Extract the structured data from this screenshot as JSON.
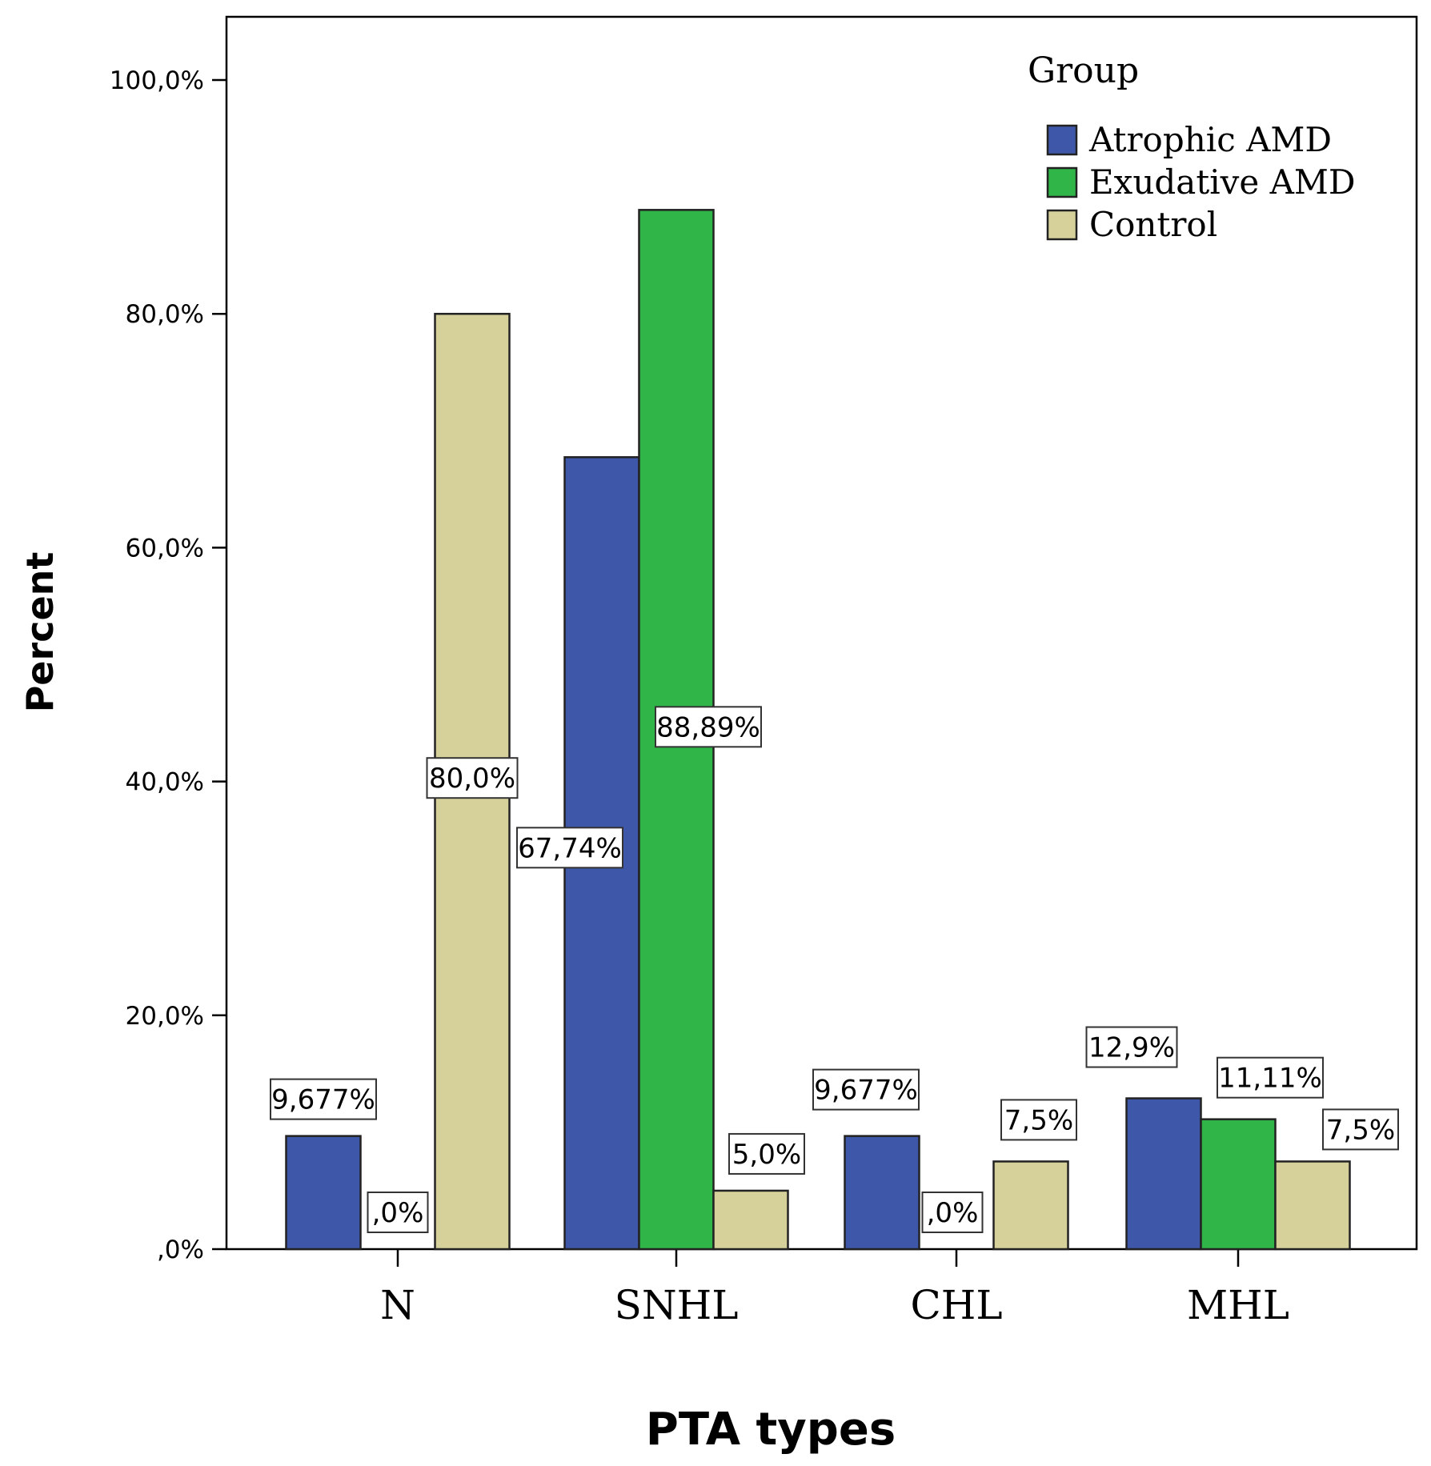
{
  "chart_data": {
    "type": "bar",
    "categories": [
      "N",
      "SNHL",
      "CHL",
      "MHL"
    ],
    "series": [
      {
        "name": "Atrophic AMD",
        "color": "#3f57a8",
        "values": [
          9.677,
          67.74,
          9.677,
          12.9
        ],
        "labels": [
          "9,677%",
          "67,74%",
          "9,677%",
          "12,9%"
        ]
      },
      {
        "name": "Exudative AMD",
        "color": "#2fb548",
        "values": [
          0,
          88.89,
          0,
          11.11
        ],
        "labels": [
          ",0%",
          "88,89%",
          ",0%",
          "11,11%"
        ]
      },
      {
        "name": "Control",
        "color": "#d6d19a",
        "values": [
          80.0,
          5.0,
          7.5,
          7.5
        ],
        "labels": [
          "80,0%",
          "5,0%",
          "7,5%",
          "7,5%"
        ]
      }
    ],
    "xlabel": "PTA types",
    "ylabel": "Percent",
    "ylim": [
      0,
      105
    ],
    "yticks": [
      0,
      20,
      40,
      60,
      80,
      100
    ],
    "ytick_labels": [
      ",0%",
      "20,0%",
      "40,0%",
      "60,0%",
      "80,0%",
      "100,0%"
    ],
    "legend_title": "Group",
    "legend_position": "top-right",
    "grid": false
  }
}
